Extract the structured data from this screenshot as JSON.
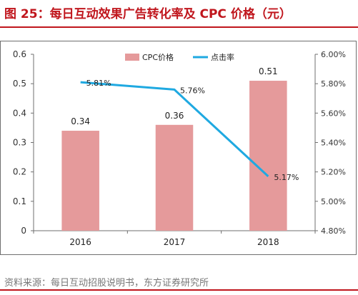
{
  "header": {
    "title": "图 25：每日互动效果广告转化率及 CPC 价格（元）"
  },
  "footer": {
    "source": "资料来源：每日互动招股说明书，东方证券研究所"
  },
  "colors": {
    "bar": "#e59a9b",
    "line": "#1fa9e1",
    "accent": "#c0161d"
  },
  "chart_data": {
    "type": "bar",
    "categories": [
      "2016",
      "2017",
      "2018"
    ],
    "series": [
      {
        "name": "CPC价格",
        "type": "bar",
        "axis": "left",
        "values": [
          0.34,
          0.36,
          0.51
        ],
        "labels": [
          "0.34",
          "0.36",
          "0.51"
        ]
      },
      {
        "name": "点击率",
        "type": "line",
        "axis": "right",
        "values": [
          5.81,
          5.76,
          5.17
        ],
        "labels": [
          "5.81%",
          "5.76%",
          "5.17%"
        ]
      }
    ],
    "y_left": {
      "ylim": [
        0,
        0.6
      ],
      "ticks": [
        "0",
        "0.1",
        "0.2",
        "0.3",
        "0.4",
        "0.5",
        "0.6"
      ]
    },
    "y_right": {
      "ylim": [
        4.8,
        6.0
      ],
      "ticks": [
        "4.80%",
        "5.00%",
        "5.20%",
        "5.40%",
        "5.60%",
        "5.80%",
        "6.00%"
      ]
    },
    "legend": "top-center",
    "grid": false
  }
}
